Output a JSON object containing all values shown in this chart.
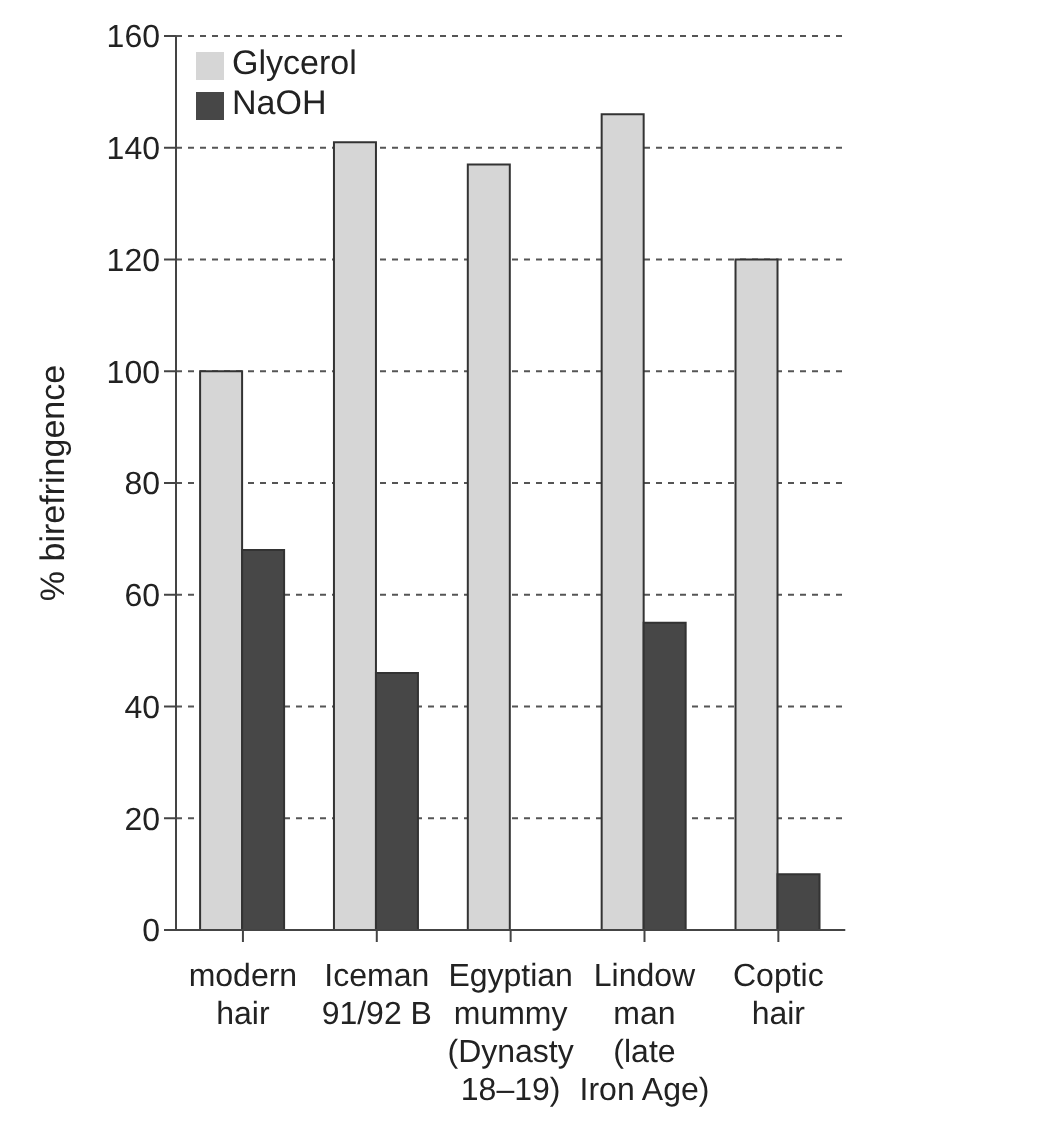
{
  "chart_data": {
    "type": "bar",
    "ylabel": "% birefringence",
    "categories": [
      "modern\nhair",
      "Iceman\n91/92 B",
      "Egyptian\nmummy\n(Dynasty\n18–19)",
      "Lindow\nman\n(late\nIron Age)",
      "Coptic\nhair"
    ],
    "series": [
      {
        "name": "Glycerol",
        "color": "#d6d6d6",
        "values": [
          100,
          141,
          137,
          146,
          120
        ]
      },
      {
        "name": "NaOH",
        "color": "#474747",
        "values": [
          68,
          46,
          null,
          55,
          10
        ]
      }
    ],
    "ylim": [
      0,
      160
    ],
    "yticks": [
      0,
      20,
      40,
      60,
      80,
      100,
      120,
      140,
      160
    ],
    "grid": "y",
    "legend": "top left"
  }
}
